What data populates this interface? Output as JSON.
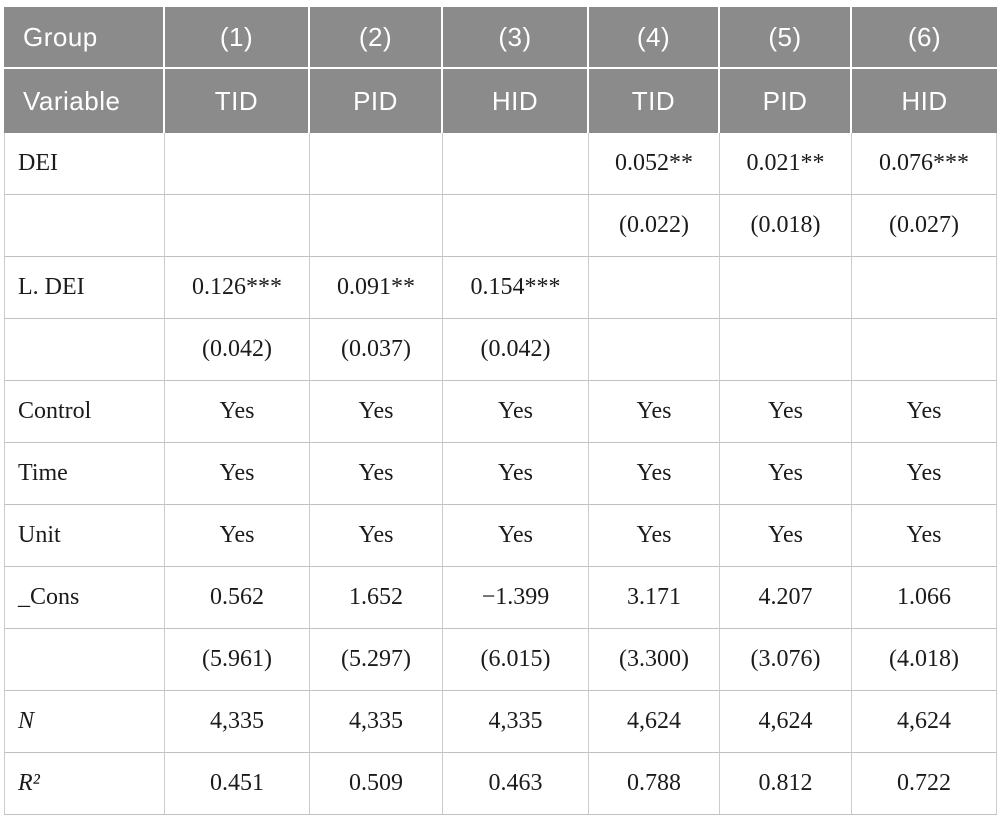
{
  "colors": {
    "header_bg": "#8b8b8b",
    "header_text": "#ffffff",
    "body_text": "#1b1b1b",
    "border_horizontal": "#c0c0c0",
    "border_vertical": "#cccccc"
  },
  "table": {
    "header_row_1": [
      "Group",
      "(1)",
      "(2)",
      "(3)",
      "(4)",
      "(5)",
      "(6)"
    ],
    "header_row_2": [
      "Variable",
      "TID",
      "PID",
      "HID",
      "TID",
      "PID",
      "HID"
    ],
    "rows": [
      {
        "label": "DEI",
        "italic": false,
        "values": [
          "",
          "",
          "",
          "0.052**",
          "0.021**",
          "0.076***"
        ]
      },
      {
        "label": "",
        "italic": false,
        "values": [
          "",
          "",
          "",
          "(0.022)",
          "(0.018)",
          "(0.027)"
        ]
      },
      {
        "label": "L. DEI",
        "italic": false,
        "values": [
          "0.126***",
          "0.091**",
          "0.154***",
          "",
          "",
          ""
        ]
      },
      {
        "label": "",
        "italic": false,
        "values": [
          "(0.042)",
          "(0.037)",
          "(0.042)",
          "",
          "",
          ""
        ]
      },
      {
        "label": "Control",
        "italic": false,
        "values": [
          "Yes",
          "Yes",
          "Yes",
          "Yes",
          "Yes",
          "Yes"
        ]
      },
      {
        "label": "Time",
        "italic": false,
        "values": [
          "Yes",
          "Yes",
          "Yes",
          "Yes",
          "Yes",
          "Yes"
        ]
      },
      {
        "label": "Unit",
        "italic": false,
        "values": [
          "Yes",
          "Yes",
          "Yes",
          "Yes",
          "Yes",
          "Yes"
        ]
      },
      {
        "label": "_Cons",
        "italic": false,
        "values": [
          "0.562",
          "1.652",
          "−1.399",
          "3.171",
          "4.207",
          "1.066"
        ]
      },
      {
        "label": "",
        "italic": false,
        "values": [
          "(5.961)",
          "(5.297)",
          "(6.015)",
          "(3.300)",
          "(3.076)",
          "(4.018)"
        ]
      },
      {
        "label": "N",
        "italic": true,
        "values": [
          "4,335",
          "4,335",
          "4,335",
          "4,624",
          "4,624",
          "4,624"
        ]
      },
      {
        "label": "R²",
        "italic": true,
        "values": [
          "0.451",
          "0.509",
          "0.463",
          "0.788",
          "0.812",
          "0.722"
        ]
      }
    ]
  }
}
